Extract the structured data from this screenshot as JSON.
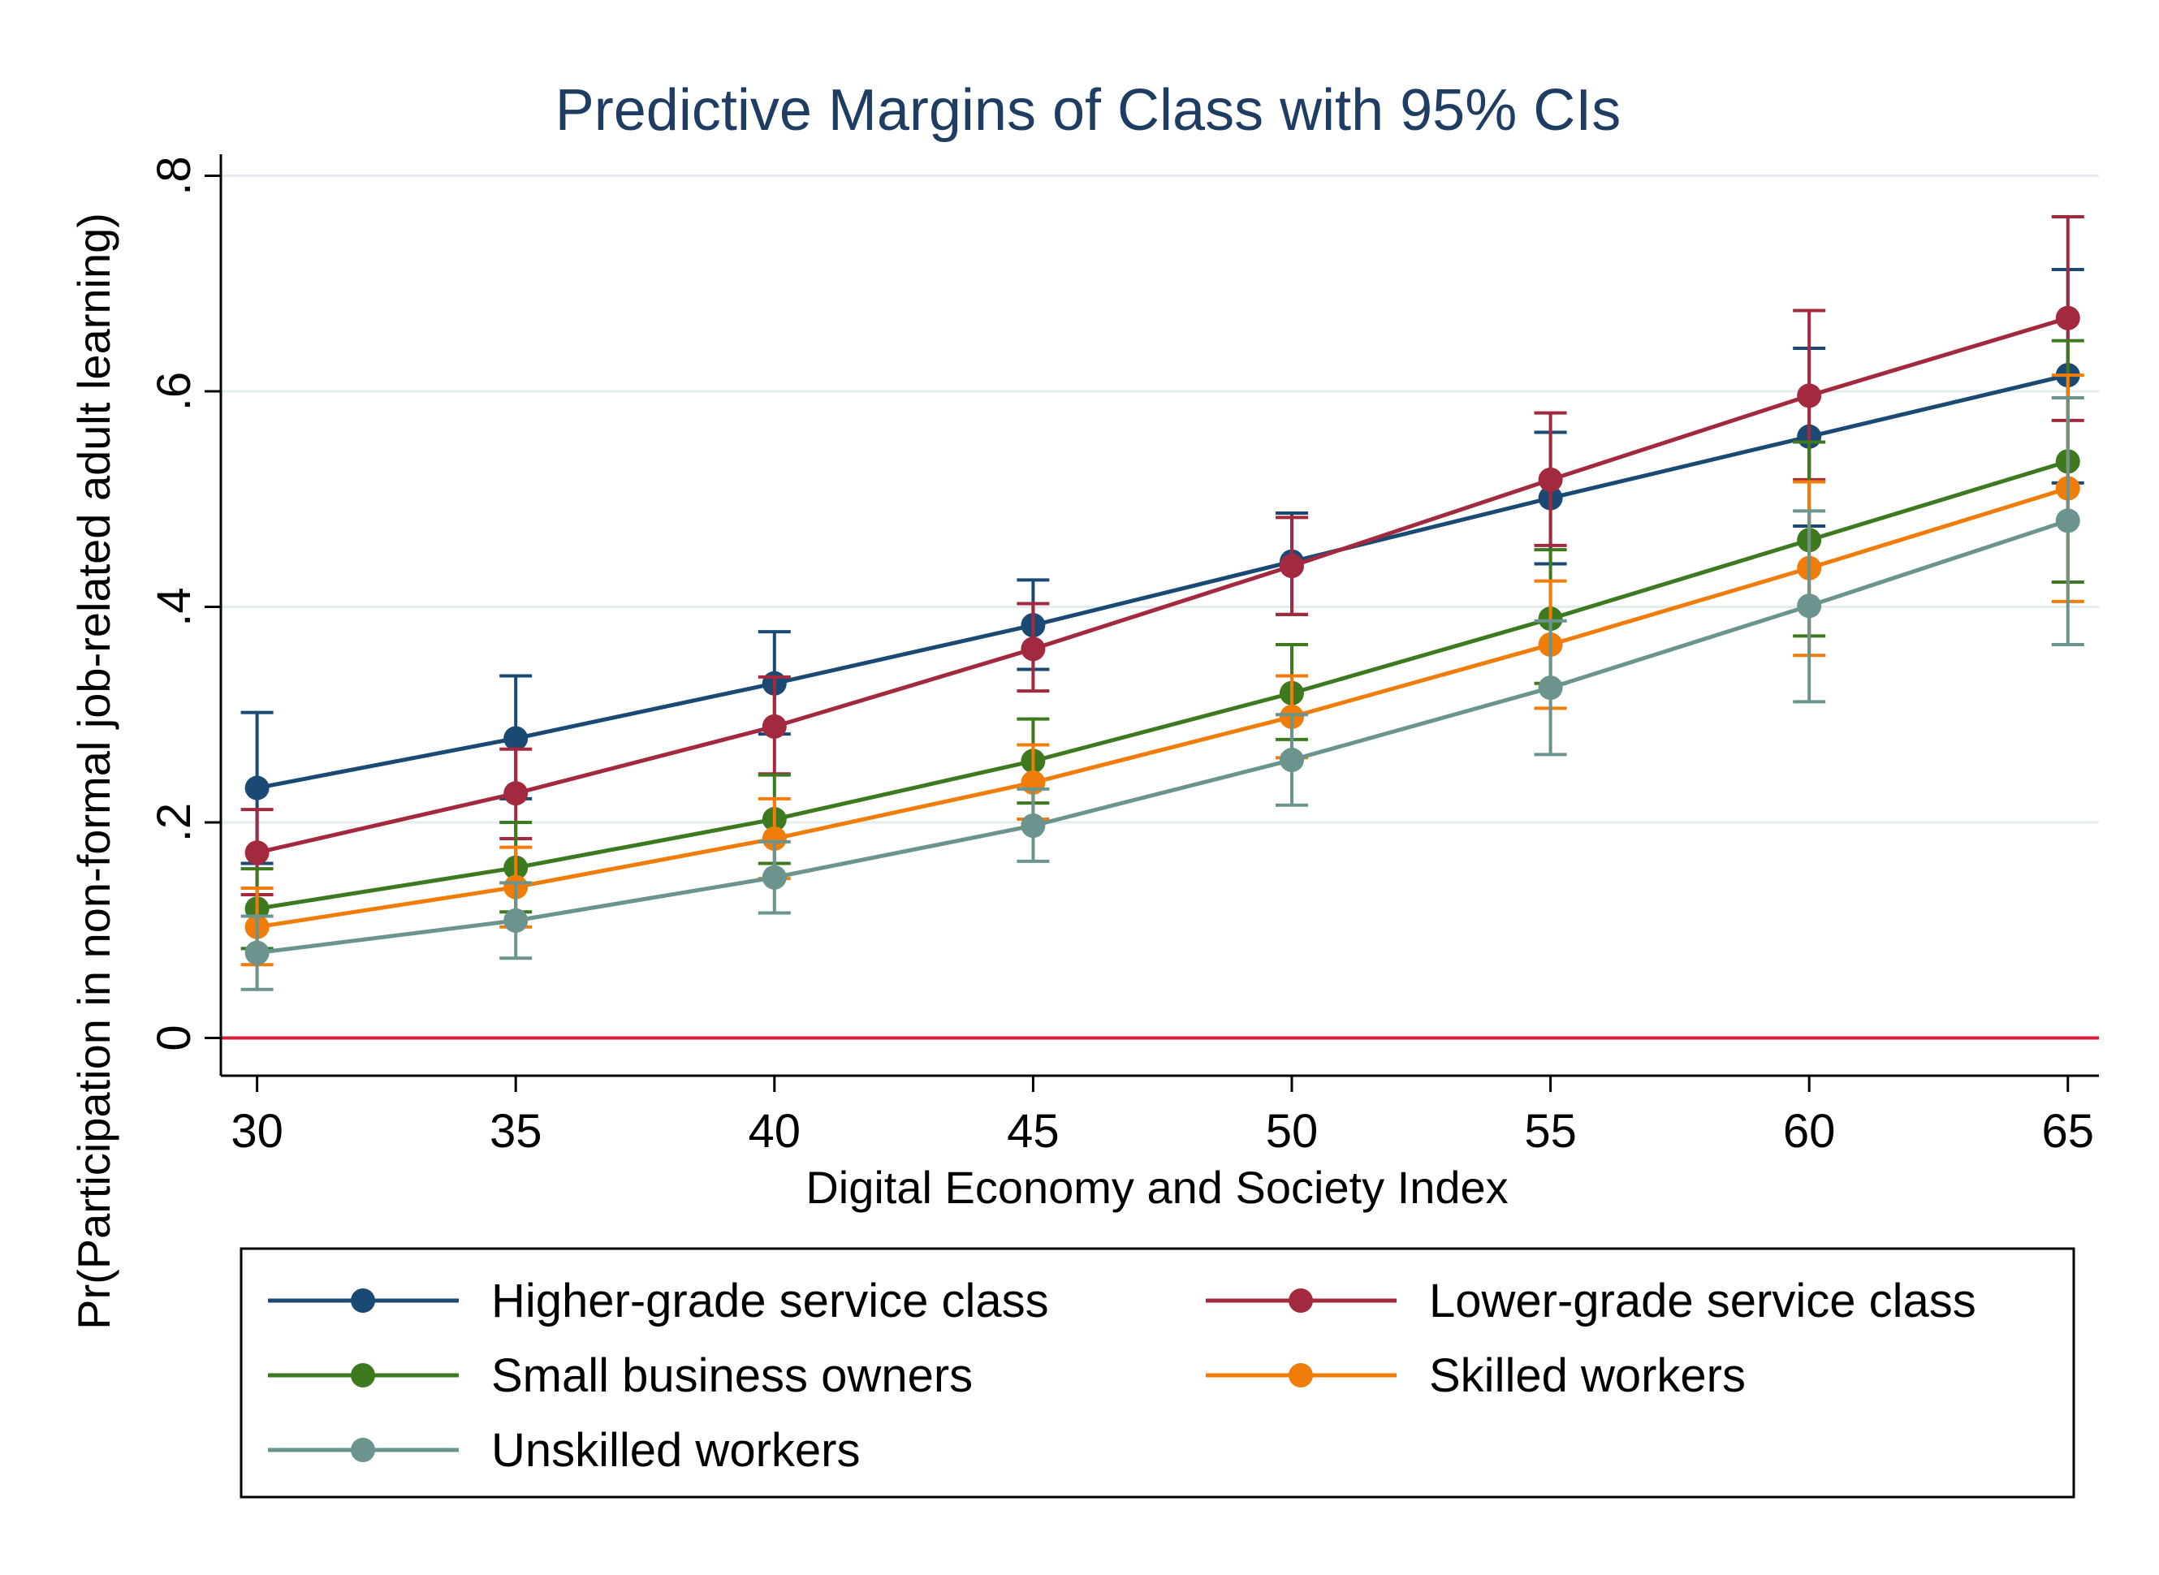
{
  "chart_data": {
    "type": "line",
    "title": "Predictive Margins of Class with 95% CIs",
    "xlabel": "Digital Economy and Society Index",
    "ylabel": "Pr(Participation in non-formal job-related adult learning)",
    "x": [
      30,
      35,
      40,
      45,
      50,
      55,
      60,
      65
    ],
    "xticks": [
      "30",
      "35",
      "40",
      "45",
      "50",
      "55",
      "60",
      "65"
    ],
    "yticks": [
      "0",
      ".2",
      ".4",
      ".6",
      ".8"
    ],
    "ytick_values": [
      0,
      0.2,
      0.4,
      0.6,
      0.8
    ],
    "xlim": [
      29.3,
      65.6
    ],
    "ylim": [
      -0.035,
      0.82
    ],
    "grid": true,
    "reference_line": {
      "y": 0,
      "color": "#d9203b"
    },
    "legend_position": "bottom",
    "series": [
      {
        "name": "Higher-grade service class",
        "color": "#1a4a73",
        "values": [
          0.232,
          0.278,
          0.329,
          0.383,
          0.442,
          0.501,
          0.558,
          0.615
        ],
        "ci_low": [
          0.162,
          0.222,
          0.282,
          0.342,
          0.393,
          0.44,
          0.475,
          0.515
        ],
        "ci_high": [
          0.302,
          0.336,
          0.377,
          0.425,
          0.487,
          0.562,
          0.64,
          0.713
        ]
      },
      {
        "name": "Lower-grade service class",
        "color": "#a3293e",
        "values": [
          0.172,
          0.227,
          0.289,
          0.361,
          0.438,
          0.518,
          0.596,
          0.668
        ],
        "ci_low": [
          0.133,
          0.185,
          0.245,
          0.322,
          0.393,
          0.457,
          0.518,
          0.573
        ],
        "ci_high": [
          0.212,
          0.268,
          0.335,
          0.403,
          0.483,
          0.58,
          0.675,
          0.762
        ]
      },
      {
        "name": "Small business owners",
        "color": "#3d7a1f",
        "values": [
          0.12,
          0.158,
          0.203,
          0.257,
          0.32,
          0.389,
          0.462,
          0.535
        ],
        "ci_low": [
          0.083,
          0.117,
          0.162,
          0.218,
          0.277,
          0.329,
          0.373,
          0.423
        ],
        "ci_high": [
          0.157,
          0.2,
          0.244,
          0.296,
          0.365,
          0.453,
          0.553,
          0.647
        ]
      },
      {
        "name": "Skilled workers",
        "color": "#f07d0a",
        "values": [
          0.103,
          0.14,
          0.185,
          0.237,
          0.298,
          0.365,
          0.436,
          0.51
        ],
        "ci_low": [
          0.068,
          0.103,
          0.148,
          0.203,
          0.26,
          0.306,
          0.355,
          0.405
        ],
        "ci_high": [
          0.139,
          0.177,
          0.222,
          0.272,
          0.336,
          0.424,
          0.516,
          0.615
        ]
      },
      {
        "name": "Unskilled workers",
        "color": "#6b948e",
        "values": [
          0.079,
          0.109,
          0.149,
          0.197,
          0.258,
          0.325,
          0.401,
          0.48
        ],
        "ci_low": [
          0.045,
          0.074,
          0.116,
          0.164,
          0.216,
          0.263,
          0.312,
          0.365
        ],
        "ci_high": [
          0.113,
          0.144,
          0.182,
          0.231,
          0.3,
          0.387,
          0.489,
          0.594
        ]
      }
    ]
  }
}
